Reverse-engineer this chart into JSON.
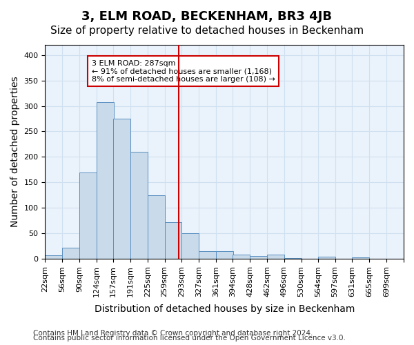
{
  "title": "3, ELM ROAD, BECKENHAM, BR3 4JB",
  "subtitle": "Size of property relative to detached houses in Beckenham",
  "xlabel": "Distribution of detached houses by size in Beckenham",
  "ylabel": "Number of detached properties",
  "bar_color": "#c9daea",
  "bar_edge_color": "#5a8fc0",
  "bin_labels": [
    "22sqm",
    "56sqm",
    "90sqm",
    "124sqm",
    "157sqm",
    "191sqm",
    "225sqm",
    "259sqm",
    "293sqm",
    "327sqm",
    "361sqm",
    "394sqm",
    "428sqm",
    "462sqm",
    "496sqm",
    "530sqm",
    "564sqm",
    "597sqm",
    "631sqm",
    "665sqm",
    "699sqm"
  ],
  "bin_edges": [
    22,
    56,
    90,
    124,
    157,
    191,
    225,
    259,
    293,
    327,
    361,
    394,
    428,
    462,
    496,
    530,
    564,
    597,
    631,
    665,
    699
  ],
  "bar_heights": [
    7,
    22,
    170,
    308,
    275,
    210,
    125,
    72,
    50,
    15,
    15,
    8,
    5,
    8,
    2,
    0,
    4,
    0,
    3,
    0
  ],
  "property_size": 287,
  "vline_color": "#cc0000",
  "annotation_text": "3 ELM ROAD: 287sqm\n← 91% of detached houses are smaller (1,168)\n8% of semi-detached houses are larger (108) →",
  "annotation_box_color": "#ffffff",
  "annotation_box_edge_color": "#cc0000",
  "ylim": [
    0,
    420
  ],
  "yticks": [
    0,
    50,
    100,
    150,
    200,
    250,
    300,
    350,
    400
  ],
  "grid_color": "#d0e0f0",
  "background_color": "#eaf2fb",
  "footer_line1": "Contains HM Land Registry data © Crown copyright and database right 2024.",
  "footer_line2": "Contains public sector information licensed under the Open Government Licence v3.0.",
  "title_fontsize": 13,
  "subtitle_fontsize": 11,
  "xlabel_fontsize": 10,
  "ylabel_fontsize": 10,
  "tick_fontsize": 8,
  "footer_fontsize": 7.5
}
